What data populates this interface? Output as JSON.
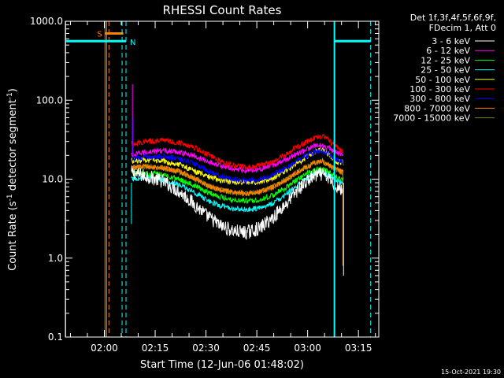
{
  "chart_data": {
    "type": "line",
    "title": "RHESSI Count Rates",
    "xlabel": "Start Time (12-Jun-06 01:48:02)",
    "ylabel_parts": [
      "Count Rate (s",
      "-1",
      " detector segment",
      "-1",
      ")"
    ],
    "yscale": "log",
    "ylim": [
      0.1,
      1000.0
    ],
    "y_ticks": [
      {
        "value": 0.1,
        "label": "0.1"
      },
      {
        "value": 1.0,
        "label": "1.0"
      },
      {
        "value": 10.0,
        "label": "10.0"
      },
      {
        "value": 100.0,
        "label": "100.0"
      },
      {
        "value": 1000.0,
        "label": "1000.0"
      }
    ],
    "x_range_minutes": [
      108.5,
      201.0
    ],
    "x_ticks": [
      {
        "minutes": 120,
        "label": "02:00"
      },
      {
        "minutes": 135,
        "label": "02:15"
      },
      {
        "minutes": 150,
        "label": "02:30"
      },
      {
        "minutes": 165,
        "label": "02:45"
      },
      {
        "minutes": 180,
        "label": "03:00"
      },
      {
        "minutes": 195,
        "label": "03:15"
      }
    ],
    "legend_header": [
      "Det 1f,3f,4f,5f,6f,9f,",
      "FDecim 1, Att 0"
    ],
    "series": [
      {
        "name": "3 - 6 keV",
        "color": "#ffffff",
        "x": [
          128,
          132,
          137,
          142,
          146,
          150,
          154,
          158,
          162,
          166,
          170,
          174,
          178,
          182,
          184,
          186,
          188,
          190.6
        ],
        "y": [
          12,
          11,
          9.5,
          7,
          5,
          3.5,
          2.6,
          2.2,
          2.1,
          2.4,
          3.3,
          5,
          8,
          11,
          11.5,
          10.5,
          8.5,
          7
        ]
      },
      {
        "name": "6 - 12 keV",
        "color": "#ff00ff",
        "x": [
          128,
          132,
          137,
          142,
          146,
          150,
          154,
          158,
          162,
          166,
          170,
          174,
          178,
          182,
          184,
          186,
          188,
          190.6
        ],
        "y": [
          20,
          22,
          23,
          22,
          20,
          17,
          15,
          13.5,
          13,
          13.5,
          15,
          18,
          22,
          26,
          27,
          25,
          22,
          20
        ]
      },
      {
        "name": "12 - 25 keV",
        "color": "#00ff00",
        "x": [
          128,
          132,
          137,
          142,
          146,
          150,
          154,
          158,
          162,
          166,
          170,
          174,
          178,
          182,
          184,
          186,
          188,
          190.6
        ],
        "y": [
          12,
          12,
          11.5,
          10,
          8.5,
          7,
          6,
          5.5,
          5.3,
          5.5,
          6.3,
          8,
          10.5,
          13,
          13.5,
          12.5,
          11,
          10
        ]
      },
      {
        "name": "25 - 50 keV",
        "color": "#00ffff",
        "x": [
          128,
          132,
          137,
          142,
          146,
          150,
          154,
          158,
          162,
          166,
          170,
          174,
          178,
          182,
          184,
          186,
          188,
          190.6
        ],
        "y": [
          10,
          10.5,
          10,
          8.5,
          7,
          5.5,
          4.6,
          4.2,
          4.1,
          4.3,
          5,
          6.5,
          9,
          12,
          12.5,
          11.5,
          10,
          9
        ]
      },
      {
        "name": "50 - 100 keV",
        "color": "#ffff00",
        "x": [
          128,
          132,
          137,
          142,
          146,
          150,
          154,
          158,
          162,
          166,
          170,
          174,
          178,
          182,
          184,
          186,
          188,
          190.6
        ],
        "y": [
          17,
          17.5,
          17,
          15.5,
          13,
          11,
          9.8,
          9.2,
          9,
          9.3,
          10.5,
          13,
          17,
          22,
          24,
          21,
          17,
          16
        ]
      },
      {
        "name": "100 - 300 keV",
        "color": "#ff0000",
        "x": [
          128,
          132,
          137,
          142,
          146,
          150,
          154,
          158,
          162,
          166,
          170,
          174,
          178,
          182,
          184,
          186,
          188,
          190.6
        ],
        "y": [
          28,
          30,
          31,
          29,
          26,
          21,
          17,
          15,
          14,
          15,
          17,
          21,
          27,
          33,
          35,
          32,
          26,
          22
        ]
      },
      {
        "name": "300 - 800 keV",
        "color": "#0000ff",
        "x": [
          128,
          132,
          137,
          142,
          146,
          150,
          154,
          158,
          162,
          166,
          170,
          174,
          178,
          182,
          184,
          186,
          188,
          190.6
        ],
        "y": [
          18,
          19,
          19.5,
          18,
          16,
          13,
          11,
          10,
          9.5,
          10,
          11.5,
          14,
          18,
          22,
          23,
          21,
          18,
          16
        ]
      },
      {
        "name": "800 - 7000 keV",
        "color": "#ff8000",
        "x": [
          128,
          132,
          137,
          142,
          146,
          150,
          154,
          158,
          162,
          166,
          170,
          174,
          178,
          182,
          184,
          186,
          188,
          190.6
        ],
        "y": [
          14,
          14.5,
          14,
          12.5,
          10.5,
          8.5,
          7.3,
          6.8,
          6.6,
          6.9,
          8,
          10,
          13,
          16,
          17,
          15.5,
          13.5,
          12
        ]
      },
      {
        "name": "7000 - 15000 keV",
        "color": "#808000",
        "x": [
          128,
          132,
          137,
          142,
          146,
          150,
          154,
          158,
          162,
          166,
          170,
          174,
          178,
          182,
          184,
          186,
          188,
          190.6
        ],
        "y": [
          14,
          14.5,
          14,
          12.5,
          10.5,
          8.5,
          7.3,
          6.8,
          6.6,
          6.9,
          8,
          10,
          13,
          16,
          17,
          15.5,
          13.5,
          12
        ]
      }
    ],
    "spikes": [
      {
        "minutes": 128.3,
        "peak": 160,
        "color": "#ff00ff"
      },
      {
        "minutes": 128.5,
        "peak": 60,
        "color": "#0000ff"
      }
    ],
    "event_markers": [
      {
        "kind": "saa",
        "label": "S",
        "start_minutes": 120.2,
        "end_minutes": 125.6,
        "level": 700,
        "color": "#ff8000"
      },
      {
        "kind": "night",
        "label": "N",
        "start_minutes": 108.5,
        "end_minutes": 126.4,
        "level": 560,
        "color": "#00ffff"
      },
      {
        "kind": "night",
        "label": "",
        "start_minutes": 187.9,
        "end_minutes": 198.6,
        "level": 560,
        "color": "#00ffff"
      }
    ],
    "footer_date": "15-Oct-2021 19:30"
  }
}
